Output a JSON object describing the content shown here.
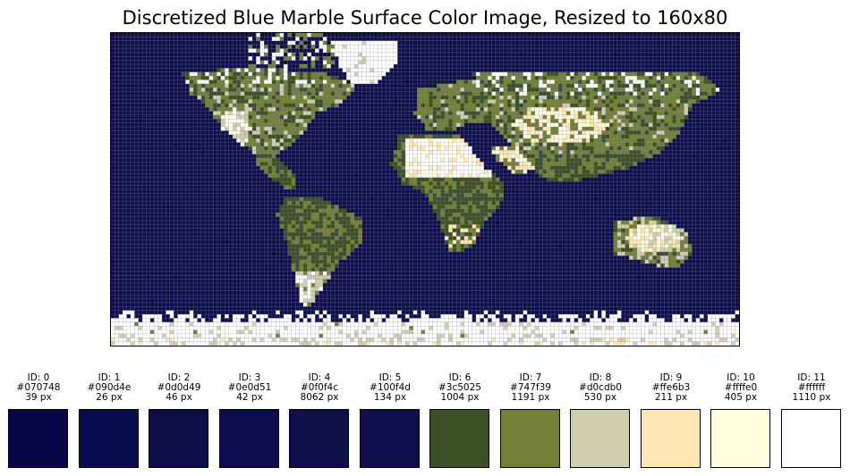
{
  "title": "Discretized Blue Marble Surface Color Image, Resized to 160x80",
  "grid": {
    "cols": 160,
    "rows": 80
  },
  "palette": [
    {
      "id_label": "ID: 0",
      "hex": "#070748",
      "count_label": "39 px"
    },
    {
      "id_label": "ID: 1",
      "hex": "#090d4e",
      "count_label": "26 px"
    },
    {
      "id_label": "ID: 2",
      "hex": "#0d0d49",
      "count_label": "46 px"
    },
    {
      "id_label": "ID: 3",
      "hex": "#0e0d51",
      "count_label": "42 px"
    },
    {
      "id_label": "ID: 4",
      "hex": "#0f0f4c",
      "count_label": "8062 px"
    },
    {
      "id_label": "ID: 5",
      "hex": "#100f4d",
      "count_label": "134 px"
    },
    {
      "id_label": "ID: 6",
      "hex": "#3c5025",
      "count_label": "1004 px"
    },
    {
      "id_label": "ID: 7",
      "hex": "#747f39",
      "count_label": "1191 px"
    },
    {
      "id_label": "ID: 8",
      "hex": "#d0cdb0",
      "count_label": "530 px"
    },
    {
      "id_label": "ID: 9",
      "hex": "#ffe6b3",
      "count_label": "211 px"
    },
    {
      "id_label": "ID: 10",
      "hex": "#ffffe0",
      "count_label": "405 px"
    },
    {
      "id_label": "ID: 11",
      "hex": "#ffffff",
      "count_label": "1110 px"
    }
  ]
}
